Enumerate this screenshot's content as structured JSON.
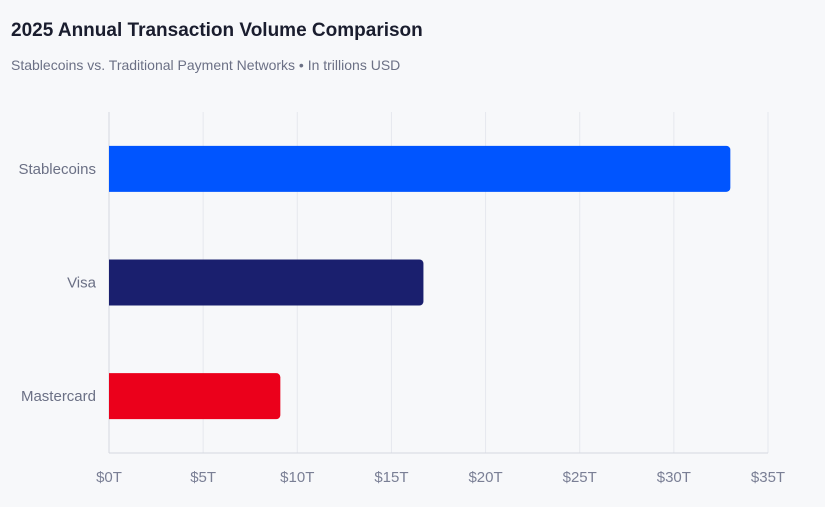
{
  "chart_data": {
    "type": "bar",
    "orientation": "horizontal",
    "title": "2025 Annual Transaction Volume Comparison",
    "subtitle": "Stablecoins vs. Traditional Payment Networks • In trillions USD",
    "categories": [
      "Stablecoins",
      "Visa",
      "Mastercard"
    ],
    "values": [
      33,
      16.7,
      9.1
    ],
    "colors": [
      "#0055ff",
      "#1a1f6e",
      "#eb001b"
    ],
    "xlim": [
      0,
      35
    ],
    "xticks": [
      0,
      5,
      10,
      15,
      20,
      25,
      30,
      35
    ],
    "xtick_labels": [
      "$0T",
      "$5T",
      "$10T",
      "$15T",
      "$20T",
      "$25T",
      "$30T",
      "$35T"
    ],
    "xlabel": "",
    "ylabel": "",
    "grid": true
  }
}
